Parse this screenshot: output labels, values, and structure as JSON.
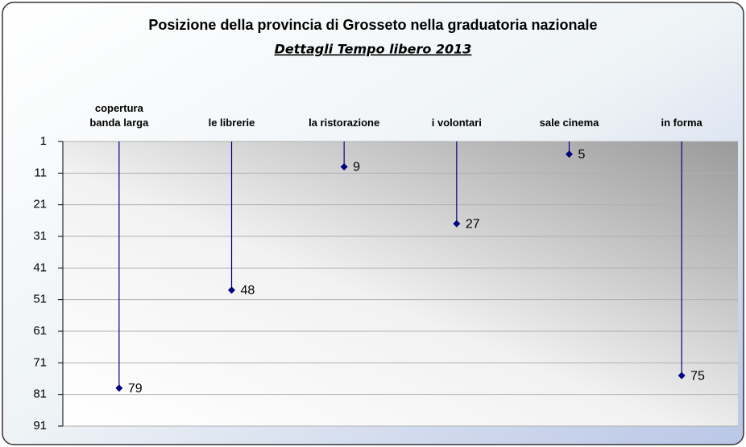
{
  "chart_data": {
    "type": "lollipop",
    "title": "Posizione della provincia di Grosseto nella graduatoria nazionale",
    "subtitle": "Dettagli Tempo libero 2013",
    "categories": [
      "copertura\nbanda larga",
      "le librerie",
      "la ristorazione",
      "i volontari",
      "sale cinema",
      "in forma"
    ],
    "values": [
      79,
      48,
      9,
      27,
      5,
      75
    ],
    "color": "#000080",
    "ylim": [
      1,
      91
    ],
    "yticks": [
      1,
      11,
      21,
      31,
      41,
      51,
      61,
      71,
      81,
      91
    ],
    "y_inverted": true,
    "grid": true
  }
}
